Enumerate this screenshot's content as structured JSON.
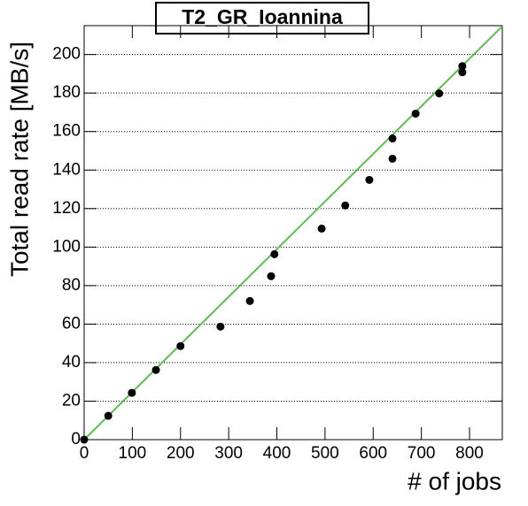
{
  "chart_data": {
    "type": "scatter",
    "title": "T2_GR_Ioannina",
    "x_label": "# of jobs",
    "y_label": "Total read rate [MB/s]",
    "x": [
      0,
      50,
      99,
      149,
      200,
      283,
      344,
      388,
      395,
      493,
      542,
      592,
      640,
      640,
      688,
      737,
      785,
      785
    ],
    "series": [
      {
        "color": "#000000",
        "values": [
          0,
          12.4,
          24.3,
          36.2,
          48.6,
          58.7,
          72,
          84.9,
          96.3,
          109.6,
          121.6,
          134.9,
          145.9,
          156.4,
          169.3,
          179.8,
          190.8,
          194
        ]
      }
    ],
    "fit": {
      "color": "#5cbf4f",
      "x": [
        0,
        868
      ],
      "values": [
        0,
        214.7
      ]
    },
    "xlim": [
      0,
      868
    ],
    "ylim": [
      0,
      215
    ],
    "xticks": [
      0,
      100,
      200,
      300,
      400,
      500,
      600,
      700,
      800
    ],
    "yticks": [
      0,
      20,
      40,
      60,
      80,
      100,
      120,
      140,
      160,
      180,
      200
    ],
    "grid": true
  }
}
